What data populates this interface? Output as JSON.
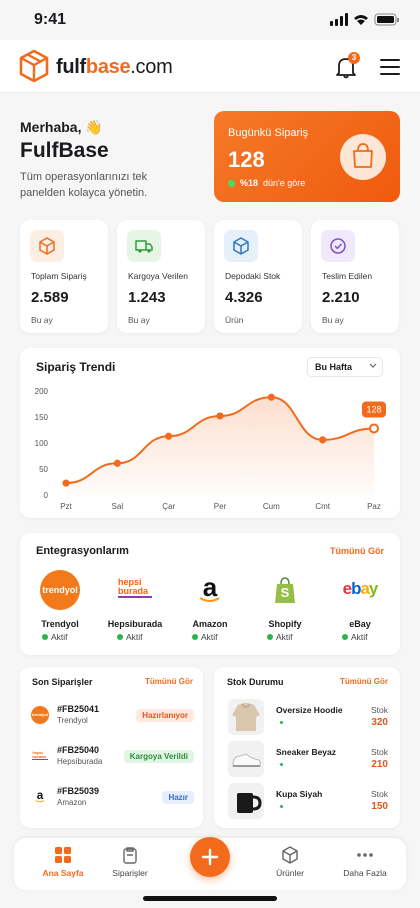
{
  "status_bar": {
    "time": "9:41"
  },
  "header": {
    "brand": {
      "part1": "fulf",
      "part2": "base",
      "part3": ".com"
    },
    "notification_count": "3"
  },
  "greeting": {
    "hello": "Merhaba, 👋",
    "name": "FulfBase",
    "text": "Tüm operasyonlarınızı tek panelden kolayca yönetin."
  },
  "today_card": {
    "title": "Bugünkü Sipariş",
    "value": "128",
    "change": "%18",
    "change_text": "dün'e göre"
  },
  "stats": [
    {
      "label": "Toplam Sipariş",
      "value": "2.589",
      "period": "Bu ay"
    },
    {
      "label": "Kargoya Verilen",
      "value": "1.243",
      "period": "Bu ay"
    },
    {
      "label": "Depodaki Stok",
      "value": "4.326",
      "period": "Ürün"
    },
    {
      "label": "Teslim Edilen",
      "value": "2.210",
      "period": "Bu ay"
    }
  ],
  "chart_data": {
    "type": "line",
    "title": "Sipariş Trendi",
    "filter": "Bu Hafta",
    "categories": [
      "Pzt",
      "Sal",
      "Çar",
      "Per",
      "Cum",
      "Cmt",
      "Paz"
    ],
    "values": [
      23,
      61,
      113,
      152,
      188,
      106,
      128
    ],
    "color": "#f26b1d",
    "ylim": [
      0,
      200
    ],
    "yticks": [
      0,
      50,
      100,
      150,
      200
    ],
    "grid": false
  },
  "integrations": {
    "title": "Entegrasyonlarım",
    "link": "Tümünü Gör",
    "items": [
      {
        "logo": "trendyol",
        "name": "Trendyol",
        "status": "Aktif"
      },
      {
        "logo": "hepsi burada",
        "name": "Hepsiburada",
        "status": "Aktif"
      },
      {
        "logo": "a",
        "name": "Amazon",
        "status": "Aktif"
      },
      {
        "logo": "S",
        "name": "Shopify",
        "status": "Aktif"
      },
      {
        "logo": "ebay",
        "name": "eBay",
        "status": "Aktif"
      }
    ]
  },
  "recent_orders": {
    "title": "Son Siparişler",
    "link": "Tümünü Gör",
    "items": [
      {
        "logo": "trendyol",
        "id": "#FB25041",
        "platform": "Trendyol",
        "status": "Hazırlanıyor"
      },
      {
        "logo": "hepsi burada",
        "id": "#FB25040",
        "platform": "Hepsiburada",
        "status": "Kargoya Verildi"
      },
      {
        "logo": "a",
        "id": "#FB25039",
        "platform": "Amazon",
        "status": "Hazır"
      }
    ]
  },
  "stock": {
    "title": "Stok Durumu",
    "link": "Tümünü Gör",
    "items": [
      {
        "name": "Oversize Hoodie",
        "label": "Stok",
        "value": 320
      },
      {
        "name": "Sneaker Beyaz",
        "label": "Stok",
        "value": 210
      },
      {
        "name": "Kupa Siyah",
        "label": "Stok",
        "value": 150
      }
    ]
  },
  "nav": [
    "Ana Sayfa",
    "Siparişler",
    "Ürünler",
    "Daha Fazla"
  ]
}
